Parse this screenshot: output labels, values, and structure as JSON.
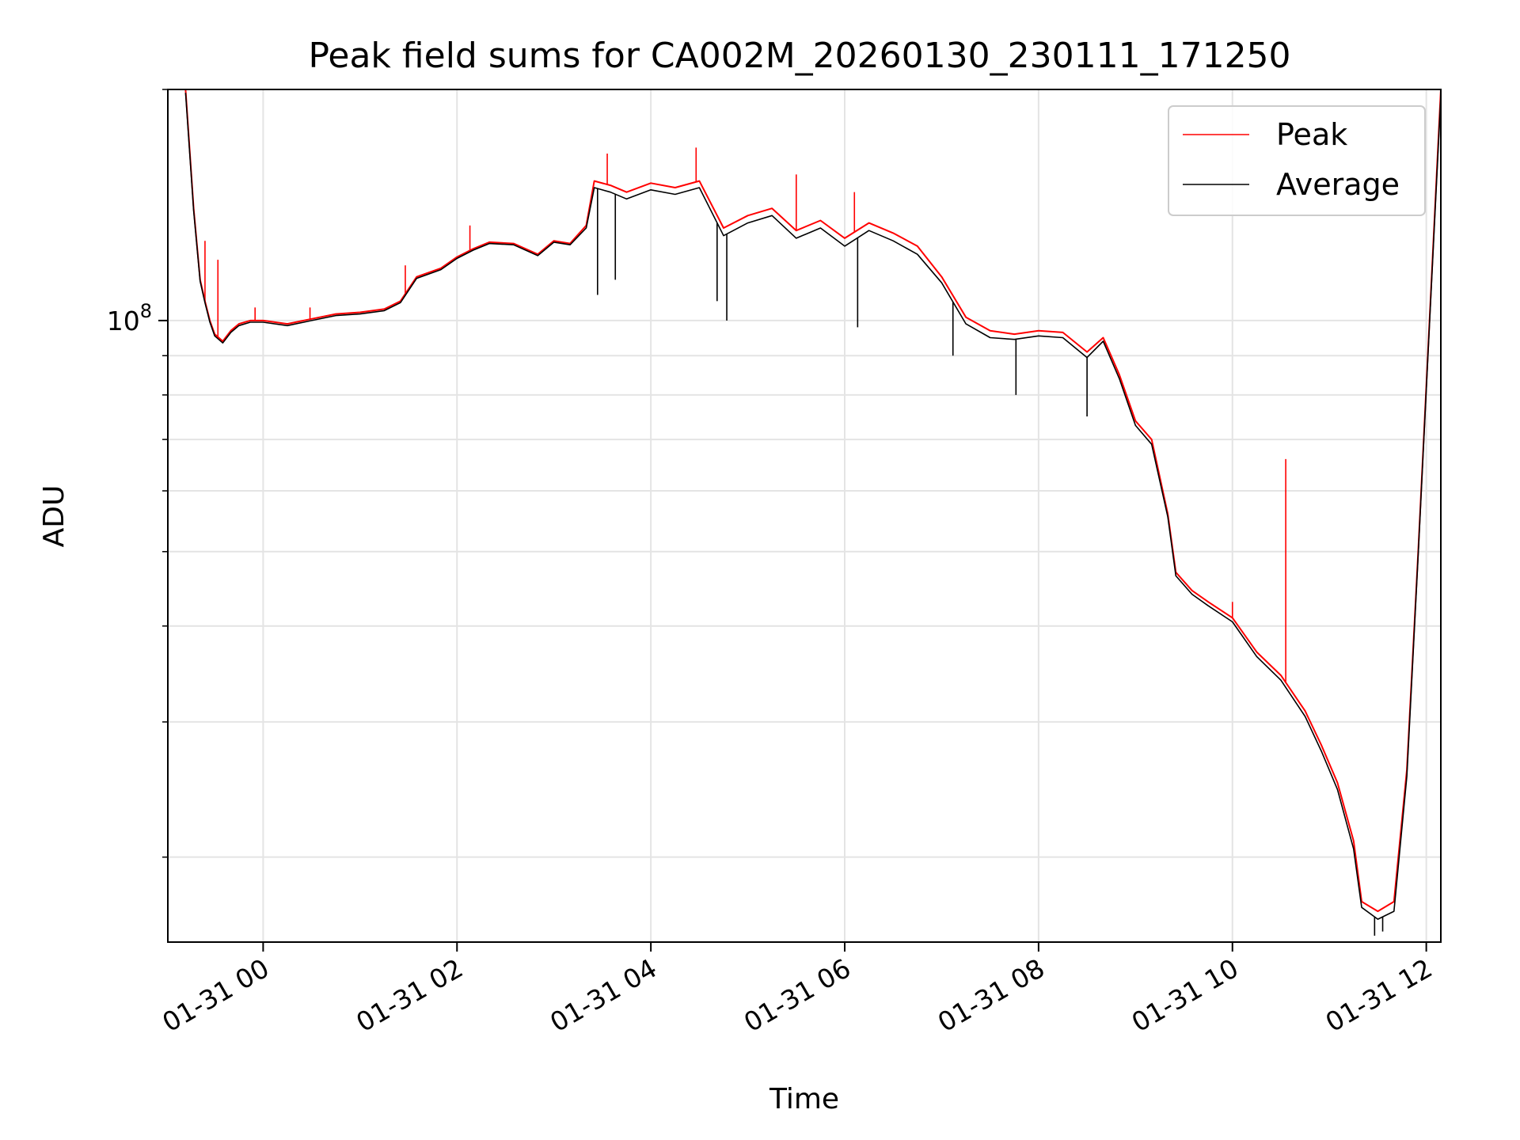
{
  "chart_data": {
    "type": "line",
    "title": "Peak field sums for CA002M_20260130_230111_171250",
    "xlabel": "Time",
    "ylabel": "ADU",
    "y_scale": "log",
    "ylim": [
      15500000,
      200000000
    ],
    "xlim": [
      "01-30 23:01",
      "01-31 12:09"
    ],
    "grid": true,
    "legend": "top-right",
    "x_ticks": [
      "01-31 00",
      "01-31 02",
      "01-31 04",
      "01-31 06",
      "01-31 08",
      "01-31 10",
      "01-31 12"
    ],
    "y_ticks": [
      {
        "value": 100000000,
        "base": "10",
        "exp": "8"
      }
    ],
    "y_minor_ticks": [
      20000000,
      30000000,
      40000000,
      50000000,
      60000000,
      70000000,
      80000000,
      90000000,
      200000000
    ],
    "series": [
      {
        "name": "Peak",
        "color": "#ff0000",
        "points": [
          [
            "01-30 23:12",
            200000000
          ],
          [
            "01-30 23:17",
            140000000
          ],
          [
            "01-30 23:21",
            113000000
          ],
          [
            "01-30 23:24",
            106000000
          ],
          [
            "01-30 23:27",
            100000000
          ],
          [
            "01-30 23:30",
            96000000
          ],
          [
            "01-30 23:35",
            94000000
          ],
          [
            "01-30 23:40",
            97000000
          ],
          [
            "01-30 23:45",
            99000000
          ],
          [
            "01-30 23:52",
            100000000
          ],
          [
            "01-31 00:00",
            100000000
          ],
          [
            "01-31 00:15",
            99000000
          ],
          [
            "01-31 00:30",
            100500000
          ],
          [
            "01-31 00:45",
            102000000
          ],
          [
            "01-31 01:00",
            102500000
          ],
          [
            "01-31 01:15",
            103500000
          ],
          [
            "01-31 01:25",
            106000000
          ],
          [
            "01-31 01:35",
            114000000
          ],
          [
            "01-31 01:50",
            117000000
          ],
          [
            "01-31 02:00",
            121000000
          ],
          [
            "01-31 02:10",
            124000000
          ],
          [
            "01-31 02:20",
            126500000
          ],
          [
            "01-31 02:35",
            126000000
          ],
          [
            "01-31 02:50",
            122000000
          ],
          [
            "01-31 03:00",
            127000000
          ],
          [
            "01-31 03:10",
            126000000
          ],
          [
            "01-31 03:20",
            133000000
          ],
          [
            "01-31 03:25",
            152000000
          ],
          [
            "01-31 03:35",
            150000000
          ],
          [
            "01-31 03:45",
            147000000
          ],
          [
            "01-31 04:00",
            151000000
          ],
          [
            "01-31 04:15",
            149000000
          ],
          [
            "01-31 04:30",
            152000000
          ],
          [
            "01-31 04:45",
            132000000
          ],
          [
            "01-31 05:00",
            137000000
          ],
          [
            "01-31 05:15",
            140000000
          ],
          [
            "01-31 05:30",
            131000000
          ],
          [
            "01-31 05:45",
            135000000
          ],
          [
            "01-31 06:00",
            128000000
          ],
          [
            "01-31 06:15",
            134000000
          ],
          [
            "01-31 06:30",
            130000000
          ],
          [
            "01-31 06:45",
            125000000
          ],
          [
            "01-31 07:00",
            114000000
          ],
          [
            "01-31 07:15",
            101000000
          ],
          [
            "01-31 07:30",
            97000000
          ],
          [
            "01-31 07:45",
            96000000
          ],
          [
            "01-31 08:00",
            97000000
          ],
          [
            "01-31 08:15",
            96500000
          ],
          [
            "01-31 08:30",
            91000000
          ],
          [
            "01-31 08:40",
            95000000
          ],
          [
            "01-31 08:50",
            85000000
          ],
          [
            "01-31 09:00",
            74000000
          ],
          [
            "01-31 09:10",
            70000000
          ],
          [
            "01-31 09:20",
            56000000
          ],
          [
            "01-31 09:25",
            47000000
          ],
          [
            "01-31 09:35",
            44500000
          ],
          [
            "01-31 09:45",
            43000000
          ],
          [
            "01-31 10:00",
            41000000
          ],
          [
            "01-31 10:15",
            37000000
          ],
          [
            "01-31 10:30",
            34500000
          ],
          [
            "01-31 10:45",
            31000000
          ],
          [
            "01-31 10:55",
            28000000
          ],
          [
            "01-31 11:05",
            25000000
          ],
          [
            "01-31 11:15",
            21000000
          ],
          [
            "01-31 11:20",
            17500000
          ],
          [
            "01-31 11:30",
            17000000
          ],
          [
            "01-31 11:40",
            17500000
          ],
          [
            "01-31 11:48",
            26000000
          ],
          [
            "01-31 11:55",
            50000000
          ],
          [
            "01-31 12:02",
            100000000
          ],
          [
            "01-31 12:09",
            200000000
          ]
        ],
        "spikes": [
          [
            "01-30 23:24",
            127000000
          ],
          [
            "01-30 23:32",
            120000000
          ],
          [
            "01-30 23:55",
            104000000
          ],
          [
            "01-31 00:29",
            104000000
          ],
          [
            "01-31 01:28",
            118000000
          ],
          [
            "01-31 02:08",
            133000000
          ],
          [
            "01-31 03:33",
            165000000
          ],
          [
            "01-31 04:28",
            168000000
          ],
          [
            "01-31 05:30",
            155000000
          ],
          [
            "01-31 06:06",
            147000000
          ],
          [
            "01-31 10:00",
            43000000
          ],
          [
            "01-31 10:33",
            66000000
          ]
        ]
      },
      {
        "name": "Average",
        "color": "#000000",
        "points": [
          [
            "01-30 23:12",
            198000000
          ],
          [
            "01-30 23:17",
            139000000
          ],
          [
            "01-30 23:21",
            112500000
          ],
          [
            "01-30 23:24",
            105500000
          ],
          [
            "01-30 23:27",
            99500000
          ],
          [
            "01-30 23:30",
            95500000
          ],
          [
            "01-30 23:35",
            93500000
          ],
          [
            "01-30 23:40",
            96500000
          ],
          [
            "01-30 23:45",
            98500000
          ],
          [
            "01-30 23:52",
            99500000
          ],
          [
            "01-31 00:00",
            99500000
          ],
          [
            "01-31 00:15",
            98500000
          ],
          [
            "01-31 00:30",
            100000000
          ],
          [
            "01-31 00:45",
            101500000
          ],
          [
            "01-31 01:00",
            102000000
          ],
          [
            "01-31 01:15",
            103000000
          ],
          [
            "01-31 01:25",
            105500000
          ],
          [
            "01-31 01:35",
            113500000
          ],
          [
            "01-31 01:50",
            116500000
          ],
          [
            "01-31 02:00",
            120500000
          ],
          [
            "01-31 02:10",
            123500000
          ],
          [
            "01-31 02:20",
            126000000
          ],
          [
            "01-31 02:35",
            125500000
          ],
          [
            "01-31 02:50",
            121500000
          ],
          [
            "01-31 03:00",
            126500000
          ],
          [
            "01-31 03:10",
            125500000
          ],
          [
            "01-31 03:20",
            132000000
          ],
          [
            "01-31 03:25",
            149000000
          ],
          [
            "01-31 03:35",
            147000000
          ],
          [
            "01-31 03:45",
            144000000
          ],
          [
            "01-31 04:00",
            148000000
          ],
          [
            "01-31 04:15",
            146000000
          ],
          [
            "01-31 04:30",
            149000000
          ],
          [
            "01-31 04:45",
            129000000
          ],
          [
            "01-31 05:00",
            134000000
          ],
          [
            "01-31 05:15",
            137000000
          ],
          [
            "01-31 05:30",
            128000000
          ],
          [
            "01-31 05:45",
            132000000
          ],
          [
            "01-31 06:00",
            125000000
          ],
          [
            "01-31 06:15",
            131000000
          ],
          [
            "01-31 06:30",
            127000000
          ],
          [
            "01-31 06:45",
            122000000
          ],
          [
            "01-31 07:00",
            112000000
          ],
          [
            "01-31 07:15",
            99000000
          ],
          [
            "01-31 07:30",
            95000000
          ],
          [
            "01-31 07:45",
            94500000
          ],
          [
            "01-31 08:00",
            95500000
          ],
          [
            "01-31 08:15",
            95000000
          ],
          [
            "01-31 08:30",
            89500000
          ],
          [
            "01-31 08:40",
            94000000
          ],
          [
            "01-31 08:50",
            84000000
          ],
          [
            "01-31 09:00",
            73000000
          ],
          [
            "01-31 09:10",
            69000000
          ],
          [
            "01-31 09:20",
            55500000
          ],
          [
            "01-31 09:25",
            46500000
          ],
          [
            "01-31 09:35",
            44000000
          ],
          [
            "01-31 09:45",
            42500000
          ],
          [
            "01-31 10:00",
            40500000
          ],
          [
            "01-31 10:15",
            36500000
          ],
          [
            "01-31 10:30",
            34000000
          ],
          [
            "01-31 10:45",
            30500000
          ],
          [
            "01-31 10:55",
            27500000
          ],
          [
            "01-31 11:05",
            24500000
          ],
          [
            "01-31 11:15",
            20500000
          ],
          [
            "01-31 11:20",
            17200000
          ],
          [
            "01-31 11:30",
            16600000
          ],
          [
            "01-31 11:40",
            17000000
          ],
          [
            "01-31 11:48",
            25500000
          ],
          [
            "01-31 11:55",
            49500000
          ],
          [
            "01-31 12:02",
            99000000
          ],
          [
            "01-31 12:09",
            196000000
          ]
        ],
        "dips": [
          [
            "01-31 03:27",
            108000000
          ],
          [
            "01-31 03:38",
            113000000
          ],
          [
            "01-31 04:47",
            100000000
          ],
          [
            "01-31 04:41",
            106000000
          ],
          [
            "01-31 06:08",
            98000000
          ],
          [
            "01-31 07:07",
            90000000
          ],
          [
            "01-31 07:46",
            80000000
          ],
          [
            "01-31 08:30",
            75000000
          ],
          [
            "01-31 11:28",
            15800000
          ],
          [
            "01-31 11:33",
            16000000
          ]
        ]
      }
    ]
  }
}
